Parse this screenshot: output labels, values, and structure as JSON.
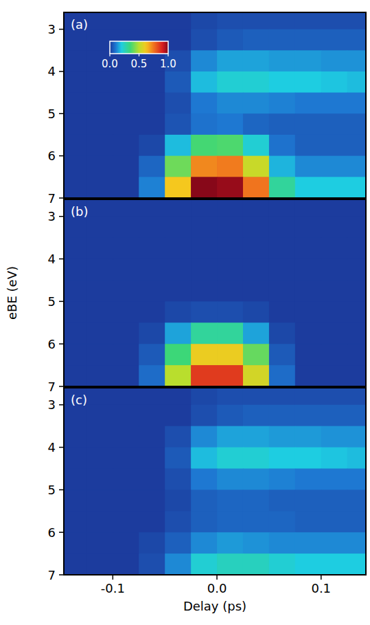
{
  "chart_data": [
    {
      "type": "heatmap",
      "title": "(a)",
      "tick_labels": "y",
      "xlim": [
        -0.147,
        0.143
      ],
      "ylim": [
        7,
        2.6
      ],
      "yticks": [
        3,
        4,
        5,
        6,
        7
      ],
      "x": [
        -0.1375,
        -0.1125,
        -0.0875,
        -0.0625,
        -0.0375,
        -0.0125,
        0.0125,
        0.0375,
        0.0625,
        0.0875,
        0.1125,
        0.1375
      ],
      "y": [
        2.75,
        3.25,
        3.75,
        4.25,
        4.75,
        5.25,
        5.75,
        6.25,
        6.75
      ],
      "z": [
        [
          0,
          0,
          0,
          0,
          0,
          0.02,
          0.03,
          0.03,
          0.03,
          0.03,
          0.03,
          0.03
        ],
        [
          0,
          0,
          0,
          0,
          0,
          0.03,
          0.05,
          0.06,
          0.06,
          0.06,
          0.06,
          0.06
        ],
        [
          0,
          0,
          0,
          0,
          0.03,
          0.12,
          0.15,
          0.15,
          0.14,
          0.14,
          0.13,
          0.13
        ],
        [
          0,
          0,
          0,
          0,
          0.05,
          0.18,
          0.22,
          0.22,
          0.2,
          0.2,
          0.19,
          0.18
        ],
        [
          0,
          0,
          0,
          0,
          0.03,
          0.1,
          0.12,
          0.12,
          0.11,
          0.1,
          0.1,
          0.1
        ],
        [
          0,
          0,
          0,
          0,
          0.04,
          0.09,
          0.1,
          0.07,
          0.06,
          0.06,
          0.06,
          0.06
        ],
        [
          0,
          0,
          0,
          0.02,
          0.18,
          0.36,
          0.37,
          0.22,
          0.09,
          0.06,
          0.06,
          0.06
        ],
        [
          0,
          0,
          0,
          0.07,
          0.41,
          0.72,
          0.74,
          0.53,
          0.17,
          0.12,
          0.12,
          0.12
        ],
        [
          0,
          0,
          0,
          0.11,
          0.62,
          1.0,
          0.98,
          0.75,
          0.3,
          0.2,
          0.2,
          0.2
        ]
      ],
      "colorbar": {
        "range": [
          0,
          1
        ],
        "ticks": [
          {
            "value": 0,
            "label": "0.0"
          },
          0.5,
          {
            "value": 1,
            "label": "1.0"
          }
        ]
      }
    },
    {
      "type": "heatmap",
      "title": "(b)",
      "tick_labels": "y",
      "ylabel": "eBE (eV)",
      "xlim": [
        -0.147,
        0.143
      ],
      "ylim": [
        7,
        2.6
      ],
      "yticks": [
        3,
        4,
        5,
        6,
        7
      ],
      "x": [
        -0.1375,
        -0.1125,
        -0.0875,
        -0.0625,
        -0.0375,
        -0.0125,
        0.0125,
        0.0375,
        0.0625,
        0.0875,
        0.1125,
        0.1375
      ],
      "y": [
        2.75,
        3.25,
        3.75,
        4.25,
        4.75,
        5.25,
        5.75,
        6.25,
        6.75
      ],
      "z": [
        [
          0,
          0,
          0,
          0,
          0,
          0,
          0,
          0,
          0,
          0,
          0,
          0
        ],
        [
          0,
          0,
          0,
          0,
          0,
          0,
          0,
          0,
          0,
          0,
          0,
          0
        ],
        [
          0,
          0,
          0,
          0,
          0,
          0,
          0,
          0,
          0,
          0,
          0,
          0
        ],
        [
          0,
          0,
          0,
          0,
          0,
          0,
          0,
          0,
          0,
          0,
          0,
          0
        ],
        [
          0,
          0,
          0,
          0,
          0,
          0,
          0,
          0,
          0,
          0,
          0,
          0
        ],
        [
          0,
          0,
          0,
          0,
          0.02,
          0.03,
          0.03,
          0.02,
          0,
          0,
          0,
          0
        ],
        [
          0,
          0,
          0,
          0.02,
          0.15,
          0.3,
          0.3,
          0.15,
          0.02,
          0,
          0,
          0
        ],
        [
          0,
          0,
          0,
          0.05,
          0.35,
          0.6,
          0.6,
          0.4,
          0.05,
          0,
          0,
          0
        ],
        [
          0,
          0,
          0,
          0.08,
          0.5,
          0.85,
          0.85,
          0.55,
          0.08,
          0,
          0,
          0
        ]
      ]
    },
    {
      "type": "heatmap",
      "title": "(c)",
      "xlabel": "Delay (ps)",
      "xlim": [
        -0.147,
        0.143
      ],
      "ylim": [
        7,
        2.6
      ],
      "yticks": [
        3,
        4,
        5,
        6,
        7
      ],
      "xticks": [
        -0.1,
        {
          "value": 0,
          "label": "0.0"
        },
        0.1
      ],
      "x": [
        -0.1375,
        -0.1125,
        -0.0875,
        -0.0625,
        -0.0375,
        -0.0125,
        0.0125,
        0.0375,
        0.0625,
        0.0875,
        0.1125,
        0.1375
      ],
      "y": [
        2.75,
        3.25,
        3.75,
        4.25,
        4.75,
        5.25,
        5.75,
        6.25,
        6.75
      ],
      "z": [
        [
          0,
          0,
          0,
          0,
          0,
          0.02,
          0.03,
          0.03,
          0.03,
          0.03,
          0.03,
          0.03
        ],
        [
          0,
          0,
          0,
          0,
          0,
          0.03,
          0.05,
          0.06,
          0.06,
          0.06,
          0.06,
          0.06
        ],
        [
          0,
          0,
          0,
          0,
          0.03,
          0.12,
          0.15,
          0.15,
          0.14,
          0.14,
          0.13,
          0.13
        ],
        [
          0,
          0,
          0,
          0,
          0.05,
          0.18,
          0.22,
          0.22,
          0.2,
          0.2,
          0.19,
          0.18
        ],
        [
          0,
          0,
          0,
          0,
          0.03,
          0.1,
          0.12,
          0.12,
          0.11,
          0.1,
          0.1,
          0.1
        ],
        [
          0,
          0,
          0,
          0,
          0.02,
          0.06,
          0.07,
          0.07,
          0.06,
          0.06,
          0.06,
          0.06
        ],
        [
          0,
          0,
          0,
          0,
          0.03,
          0.06,
          0.07,
          0.07,
          0.07,
          0.06,
          0.06,
          0.06
        ],
        [
          0,
          0,
          0,
          0.02,
          0.06,
          0.12,
          0.14,
          0.13,
          0.12,
          0.12,
          0.12,
          0.12
        ],
        [
          0,
          0,
          0,
          0.03,
          0.12,
          0.22,
          0.25,
          0.25,
          0.22,
          0.2,
          0.2,
          0.2
        ]
      ]
    }
  ]
}
